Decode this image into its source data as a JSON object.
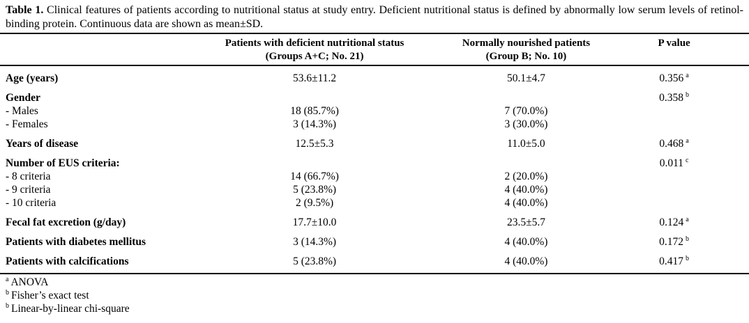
{
  "caption": {
    "label": "Table 1.",
    "text": "Clinical features of patients according to nutritional status at study entry. Deficient nutritional status is defined by abnormally low serum levels of retinol-binding protein. Continuous data are shown as mean±SD."
  },
  "table": {
    "columns": [
      {
        "label": "",
        "sublabel": ""
      },
      {
        "label": "Patients with deficient nutritional status",
        "sublabel": "(Groups A+C; No. 21)"
      },
      {
        "label": "Normally nourished patients",
        "sublabel": "(Group B; No. 10)"
      },
      {
        "label": "P value",
        "sublabel": ""
      }
    ],
    "rows": [
      {
        "label": "Age (years)",
        "bold": true,
        "group_start": true,
        "deficient": "53.6±11.2",
        "nourished": "50.1±4.7",
        "p": "0.356",
        "p_sup": "a"
      },
      {
        "label": "Gender",
        "bold": true,
        "group_start": true,
        "deficient": "",
        "nourished": "",
        "p": "0.358",
        "p_sup": "b"
      },
      {
        "label": "- Males",
        "bold": false,
        "group_start": false,
        "deficient": "18 (85.7%)",
        "nourished": "7 (70.0%)",
        "p": "",
        "p_sup": ""
      },
      {
        "label": "- Females",
        "bold": false,
        "group_start": false,
        "deficient": "3 (14.3%)",
        "nourished": "3 (30.0%)",
        "p": "",
        "p_sup": ""
      },
      {
        "label": "Years of disease",
        "bold": true,
        "group_start": true,
        "deficient": "12.5±5.3",
        "nourished": "11.0±5.0",
        "p": "0.468",
        "p_sup": "a"
      },
      {
        "label": "Number of EUS criteria:",
        "bold": true,
        "group_start": true,
        "deficient": "",
        "nourished": "",
        "p": "0.011",
        "p_sup": "c"
      },
      {
        "label": "- 8 criteria",
        "bold": false,
        "group_start": false,
        "deficient": "14 (66.7%)",
        "nourished": "2 (20.0%)",
        "p": "",
        "p_sup": ""
      },
      {
        "label": "- 9 criteria",
        "bold": false,
        "group_start": false,
        "deficient": "5 (23.8%)",
        "nourished": "4 (40.0%)",
        "p": "",
        "p_sup": ""
      },
      {
        "label": "- 10 criteria",
        "bold": false,
        "group_start": false,
        "deficient": "2 (9.5%)",
        "nourished": "4 (40.0%)",
        "p": "",
        "p_sup": ""
      },
      {
        "label": "Fecal fat excretion (g/day)",
        "bold": true,
        "group_start": true,
        "deficient": "17.7±10.0",
        "nourished": "23.5±5.7",
        "p": "0.124",
        "p_sup": "a"
      },
      {
        "label": "Patients with diabetes mellitus",
        "bold": true,
        "group_start": true,
        "deficient": "3 (14.3%)",
        "nourished": "4 (40.0%)",
        "p": "0.172",
        "p_sup": "b"
      },
      {
        "label": "Patients with calcifications",
        "bold": true,
        "group_start": true,
        "deficient": "5 (23.8%)",
        "nourished": "4 (40.0%)",
        "p": "0.417",
        "p_sup": "b"
      }
    ]
  },
  "footnotes": [
    {
      "sup": "a",
      "text": "ANOVA"
    },
    {
      "sup": "b",
      "text": "Fisher’s exact test"
    },
    {
      "sup": "b",
      "text": "Linear-by-linear chi-square"
    }
  ],
  "colors": {
    "text": "#000000",
    "background": "#ffffff",
    "rule": "#000000"
  }
}
